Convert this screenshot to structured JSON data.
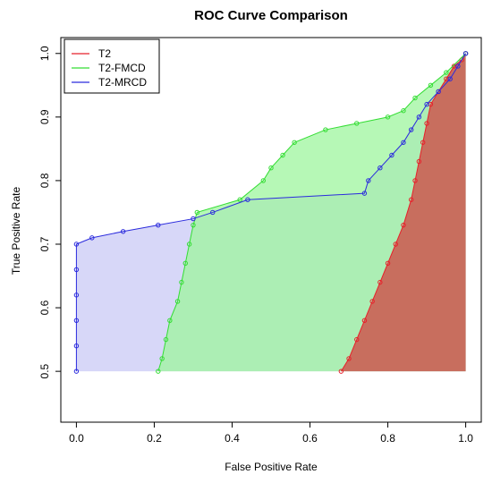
{
  "chart_data": {
    "type": "area",
    "title": "ROC Curve Comparison",
    "xlabel": "False Positive Rate",
    "ylabel": "True Positive Rate",
    "xlim": [
      0.0,
      1.0
    ],
    "ylim": [
      0.5,
      1.0
    ],
    "x_ticks": [
      0.0,
      0.2,
      0.4,
      0.6,
      0.8,
      1.0
    ],
    "x_tick_labels": [
      "0.0",
      "0.2",
      "0.4",
      "0.6",
      "0.8",
      "1.0"
    ],
    "y_ticks": [
      0.5,
      0.6,
      0.7,
      0.8,
      0.9,
      1.0
    ],
    "y_tick_labels": [
      "0.5",
      "0.6",
      "0.7",
      "0.8",
      "0.9",
      "1.0"
    ],
    "grid": false,
    "legend_position": "top-left",
    "series": [
      {
        "name": "T2",
        "color": "#e8202a",
        "fill": "#c9665a",
        "points": [
          [
            0.68,
            0.5
          ],
          [
            0.7,
            0.52
          ],
          [
            0.72,
            0.55
          ],
          [
            0.74,
            0.58
          ],
          [
            0.76,
            0.61
          ],
          [
            0.78,
            0.64
          ],
          [
            0.8,
            0.67
          ],
          [
            0.82,
            0.7
          ],
          [
            0.84,
            0.73
          ],
          [
            0.86,
            0.77
          ],
          [
            0.87,
            0.8
          ],
          [
            0.88,
            0.83
          ],
          [
            0.89,
            0.86
          ],
          [
            0.9,
            0.89
          ],
          [
            0.91,
            0.92
          ],
          [
            0.93,
            0.94
          ],
          [
            0.95,
            0.96
          ],
          [
            0.97,
            0.98
          ],
          [
            0.99,
            0.99
          ],
          [
            1.0,
            1.0
          ]
        ]
      },
      {
        "name": "T2-FMCD",
        "color": "#33dd33",
        "fill": "#9ef59e",
        "points": [
          [
            0.21,
            0.5
          ],
          [
            0.22,
            0.52
          ],
          [
            0.23,
            0.55
          ],
          [
            0.24,
            0.58
          ],
          [
            0.26,
            0.61
          ],
          [
            0.27,
            0.64
          ],
          [
            0.28,
            0.67
          ],
          [
            0.29,
            0.7
          ],
          [
            0.3,
            0.73
          ],
          [
            0.31,
            0.75
          ],
          [
            0.42,
            0.77
          ],
          [
            0.48,
            0.8
          ],
          [
            0.5,
            0.82
          ],
          [
            0.53,
            0.84
          ],
          [
            0.56,
            0.86
          ],
          [
            0.64,
            0.88
          ],
          [
            0.72,
            0.89
          ],
          [
            0.8,
            0.9
          ],
          [
            0.84,
            0.91
          ],
          [
            0.87,
            0.93
          ],
          [
            0.91,
            0.95
          ],
          [
            0.95,
            0.97
          ],
          [
            1.0,
            1.0
          ]
        ]
      },
      {
        "name": "T2-MRCD",
        "color": "#2b2bdd",
        "fill": "#c9c9f5",
        "points": [
          [
            0.0,
            0.5
          ],
          [
            0.0,
            0.54
          ],
          [
            0.0,
            0.58
          ],
          [
            0.0,
            0.62
          ],
          [
            0.0,
            0.66
          ],
          [
            0.0,
            0.7
          ],
          [
            0.04,
            0.71
          ],
          [
            0.12,
            0.72
          ],
          [
            0.21,
            0.73
          ],
          [
            0.3,
            0.74
          ],
          [
            0.35,
            0.75
          ],
          [
            0.44,
            0.77
          ],
          [
            0.74,
            0.78
          ],
          [
            0.75,
            0.8
          ],
          [
            0.78,
            0.82
          ],
          [
            0.81,
            0.84
          ],
          [
            0.84,
            0.86
          ],
          [
            0.86,
            0.88
          ],
          [
            0.88,
            0.9
          ],
          [
            0.9,
            0.92
          ],
          [
            0.93,
            0.94
          ],
          [
            0.96,
            0.96
          ],
          [
            0.98,
            0.98
          ],
          [
            1.0,
            1.0
          ]
        ]
      }
    ]
  }
}
